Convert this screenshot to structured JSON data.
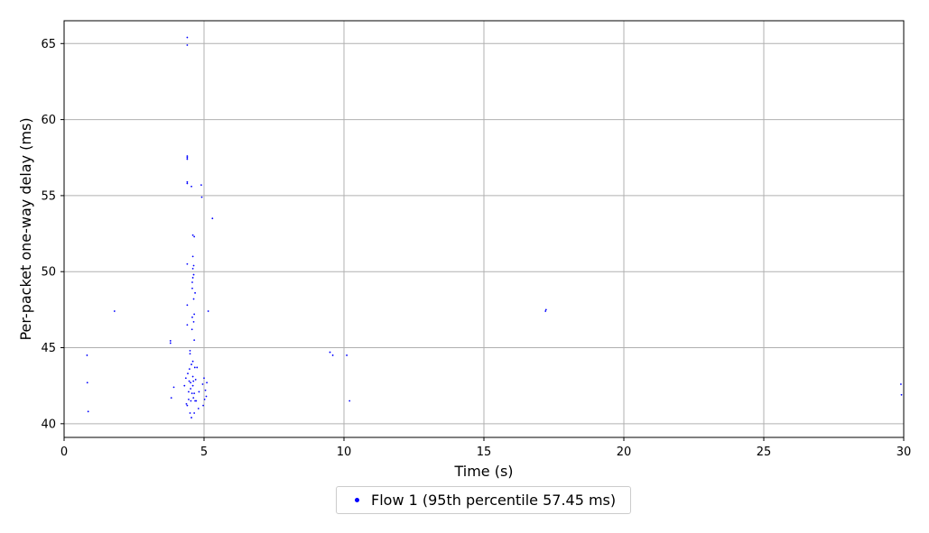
{
  "chart_data": {
    "type": "scatter",
    "xlabel": "Time (s)",
    "ylabel": "Per-packet one-way delay (ms)",
    "xlim": [
      0,
      30
    ],
    "ylim": [
      39.1,
      66.5
    ],
    "xticks": [
      "0",
      "5",
      "10",
      "15",
      "20",
      "25",
      "30"
    ],
    "yticks": [
      "40",
      "45",
      "50",
      "55",
      "60",
      "65"
    ],
    "grid": true,
    "legend_position": "bottom-center",
    "series": [
      {
        "name": "Flow 1 (95th percentile 57.45 ms)",
        "color": "#0000ff",
        "points": [
          [
            0.82,
            44.5
          ],
          [
            0.83,
            42.7
          ],
          [
            0.86,
            40.8
          ],
          [
            1.8,
            47.4
          ],
          [
            3.8,
            45.3
          ],
          [
            3.8,
            45.45
          ],
          [
            3.83,
            41.7
          ],
          [
            3.92,
            42.4
          ],
          [
            4.3,
            42.5
          ],
          [
            4.35,
            43.0
          ],
          [
            4.37,
            41.3
          ],
          [
            4.4,
            41.2
          ],
          [
            4.4,
            46.5
          ],
          [
            4.4,
            47.8
          ],
          [
            4.4,
            50.5
          ],
          [
            4.4,
            55.8
          ],
          [
            4.4,
            55.9
          ],
          [
            4.4,
            57.4
          ],
          [
            4.4,
            57.5
          ],
          [
            4.4,
            57.6
          ],
          [
            4.4,
            64.9
          ],
          [
            4.4,
            65.4
          ],
          [
            4.42,
            43.3
          ],
          [
            4.45,
            41.6
          ],
          [
            4.45,
            42.1
          ],
          [
            4.47,
            42.8
          ],
          [
            4.48,
            43.6
          ],
          [
            4.5,
            44.6
          ],
          [
            4.5,
            44.8
          ],
          [
            4.5,
            40.7
          ],
          [
            4.52,
            42.3
          ],
          [
            4.52,
            42.7
          ],
          [
            4.53,
            41.5
          ],
          [
            4.55,
            40.4
          ],
          [
            4.55,
            43.9
          ],
          [
            4.55,
            55.6
          ],
          [
            4.57,
            42.0
          ],
          [
            4.57,
            46.2
          ],
          [
            4.58,
            47.0
          ],
          [
            4.58,
            48.9
          ],
          [
            4.58,
            49.3
          ],
          [
            4.6,
            42.5
          ],
          [
            4.6,
            43.1
          ],
          [
            4.6,
            44.1
          ],
          [
            4.6,
            49.6
          ],
          [
            4.6,
            50.2
          ],
          [
            4.6,
            51.0
          ],
          [
            4.6,
            52.4
          ],
          [
            4.62,
            41.7
          ],
          [
            4.62,
            42.8
          ],
          [
            4.63,
            46.7
          ],
          [
            4.63,
            48.2
          ],
          [
            4.63,
            49.8
          ],
          [
            4.63,
            50.4
          ],
          [
            4.65,
            40.7
          ],
          [
            4.65,
            42.0
          ],
          [
            4.65,
            45.5
          ],
          [
            4.65,
            47.2
          ],
          [
            4.65,
            52.3
          ],
          [
            4.67,
            43.7
          ],
          [
            4.68,
            41.5
          ],
          [
            4.68,
            48.6
          ],
          [
            4.7,
            42.9
          ],
          [
            4.72,
            41.5
          ],
          [
            4.75,
            43.7
          ],
          [
            4.8,
            41.0
          ],
          [
            4.82,
            42.1
          ],
          [
            4.9,
            55.7
          ],
          [
            4.92,
            54.9
          ],
          [
            4.95,
            42.6
          ],
          [
            4.97,
            41.2
          ],
          [
            5.0,
            43.0
          ],
          [
            5.02,
            41.6
          ],
          [
            5.05,
            42.2
          ],
          [
            5.08,
            41.8
          ],
          [
            5.1,
            42.7
          ],
          [
            5.15,
            47.4
          ],
          [
            5.3,
            53.5
          ],
          [
            9.5,
            44.7
          ],
          [
            9.6,
            44.5
          ],
          [
            10.1,
            44.5
          ],
          [
            10.2,
            41.5
          ],
          [
            17.2,
            47.4
          ],
          [
            17.22,
            47.5
          ],
          [
            29.9,
            42.6
          ],
          [
            29.92,
            41.9
          ]
        ]
      }
    ]
  }
}
